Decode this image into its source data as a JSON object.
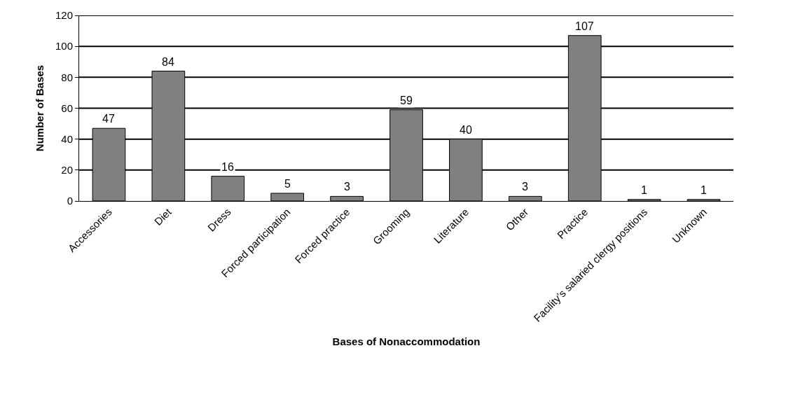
{
  "chart_data": {
    "type": "bar",
    "xlabel": "Bases of Nonaccommodation",
    "ylabel": "Number of Bases",
    "categories": [
      "Accessories",
      "Diet",
      "Dress",
      "Forced participation",
      "Forced practice",
      "Grooming",
      "Literature",
      "Other",
      "Practice",
      "Facility’s salaried clergy positions",
      "Unknown"
    ],
    "values": [
      47,
      84,
      16,
      5,
      3,
      59,
      40,
      3,
      107,
      1,
      1
    ],
    "color": "#808080",
    "data_labels": true,
    "ylim": [
      0,
      120
    ],
    "yticks": [
      0,
      20,
      40,
      60,
      80,
      100,
      120
    ],
    "grid": "y"
  }
}
